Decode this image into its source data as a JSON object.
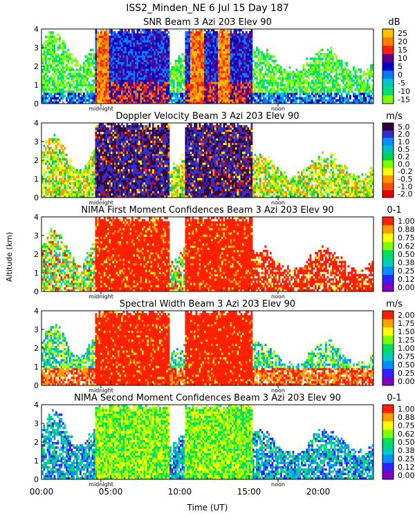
{
  "figure": {
    "title": "ISS2_Minden_NE   6 Jul 15 Day 187",
    "ylabel": "Altitude (km)",
    "xlabel": "Time (UT)",
    "x_ticks": [
      "00:00",
      "05:00",
      "10:00",
      "15:00",
      "20:00"
    ],
    "x_tick_values": [
      0,
      5,
      10,
      15,
      20
    ],
    "xlim": [
      0,
      24
    ],
    "midnight_label": "midnight",
    "noon_label": "noon",
    "midnight_hour": 4.3,
    "noon_hour": 17.1
  },
  "chart_data": [
    {
      "type": "heatmap",
      "title": "SNR Beam 3 Azi 203 Elev 90",
      "units": "dB",
      "ylim": [
        0,
        4
      ],
      "y_ticks": [
        "0",
        "1",
        "2",
        "3",
        "4"
      ],
      "colorbar": [
        "-15",
        "-10",
        "-5",
        "0",
        "5",
        "10",
        "15",
        "20",
        "25"
      ],
      "colors": [
        "#7fff00",
        "#00e070",
        "#00c8c8",
        "#0078ff",
        "#0000c0",
        "#5a0090",
        "#ff2000",
        "#ff7f00",
        "#ffc000"
      ],
      "color_min": -15,
      "color_max": 25
    },
    {
      "type": "heatmap",
      "title": "Doppler Velocity Beam 3 Azi 203 Elev 90",
      "units": "m/s",
      "ylim": [
        0,
        4
      ],
      "y_ticks": [
        "0",
        "1",
        "2",
        "3",
        "4"
      ],
      "colorbar": [
        "-2.0",
        "-1.0",
        "-0.5",
        "-0.2",
        "0.0",
        "0.2",
        "0.5",
        "1.0",
        "2.0",
        "5.0"
      ],
      "colors": [
        "#e00000",
        "#ff5000",
        "#ff9800",
        "#ffff00",
        "#80ff00",
        "#00d050",
        "#00c0c0",
        "#0090ff",
        "#3030d0",
        "#300040"
      ],
      "color_min": -2,
      "color_max": 5
    },
    {
      "type": "heatmap",
      "title": "NIMA First Moment Confidences Beam 3 Azi 203 Elev 90",
      "units": "0-1",
      "ylim": [
        0,
        4
      ],
      "y_ticks": [
        "0",
        "1",
        "2",
        "3",
        "4"
      ],
      "colorbar": [
        "0.00",
        "0.12",
        "0.25",
        "0.38",
        "0.50",
        "0.62",
        "0.75",
        "0.88",
        "1.00"
      ],
      "colors": [
        "#8000c0",
        "#3020ff",
        "#0090ff",
        "#00d0b0",
        "#00e060",
        "#80ff00",
        "#ffff00",
        "#ffa000",
        "#ff2000"
      ],
      "color_min": 0,
      "color_max": 1
    },
    {
      "type": "heatmap",
      "title": "Spectral Width Beam 3 Azi 203 Elev 90",
      "units": "m/s",
      "ylim": [
        0,
        4
      ],
      "y_ticks": [
        "0",
        "1",
        "2",
        "3",
        "4"
      ],
      "colorbar": [
        "0.00",
        "0.25",
        "0.50",
        "0.75",
        "1.00",
        "1.25",
        "1.50",
        "1.75",
        "2.00"
      ],
      "colors": [
        "#8000c0",
        "#3020ff",
        "#0090ff",
        "#00d0b0",
        "#00e060",
        "#80ff00",
        "#ffff00",
        "#ffa000",
        "#ff2000"
      ],
      "color_min": 0,
      "color_max": 2
    },
    {
      "type": "heatmap",
      "title": "NIMA Second Moment Confidences Beam 3 Azi 203 Elev 90",
      "units": "0-1",
      "ylim": [
        0,
        4
      ],
      "y_ticks": [
        "0",
        "1",
        "2",
        "3",
        "4"
      ],
      "colorbar": [
        "0.00",
        "0.12",
        "0.25",
        "0.38",
        "0.50",
        "0.62",
        "0.75",
        "0.88",
        "1.00"
      ],
      "colors": [
        "#8000c0",
        "#3020ff",
        "#0090ff",
        "#00d0b0",
        "#00e060",
        "#80ff00",
        "#ffff00",
        "#ffa000",
        "#ff2000"
      ],
      "color_min": 0,
      "color_max": 1
    }
  ]
}
